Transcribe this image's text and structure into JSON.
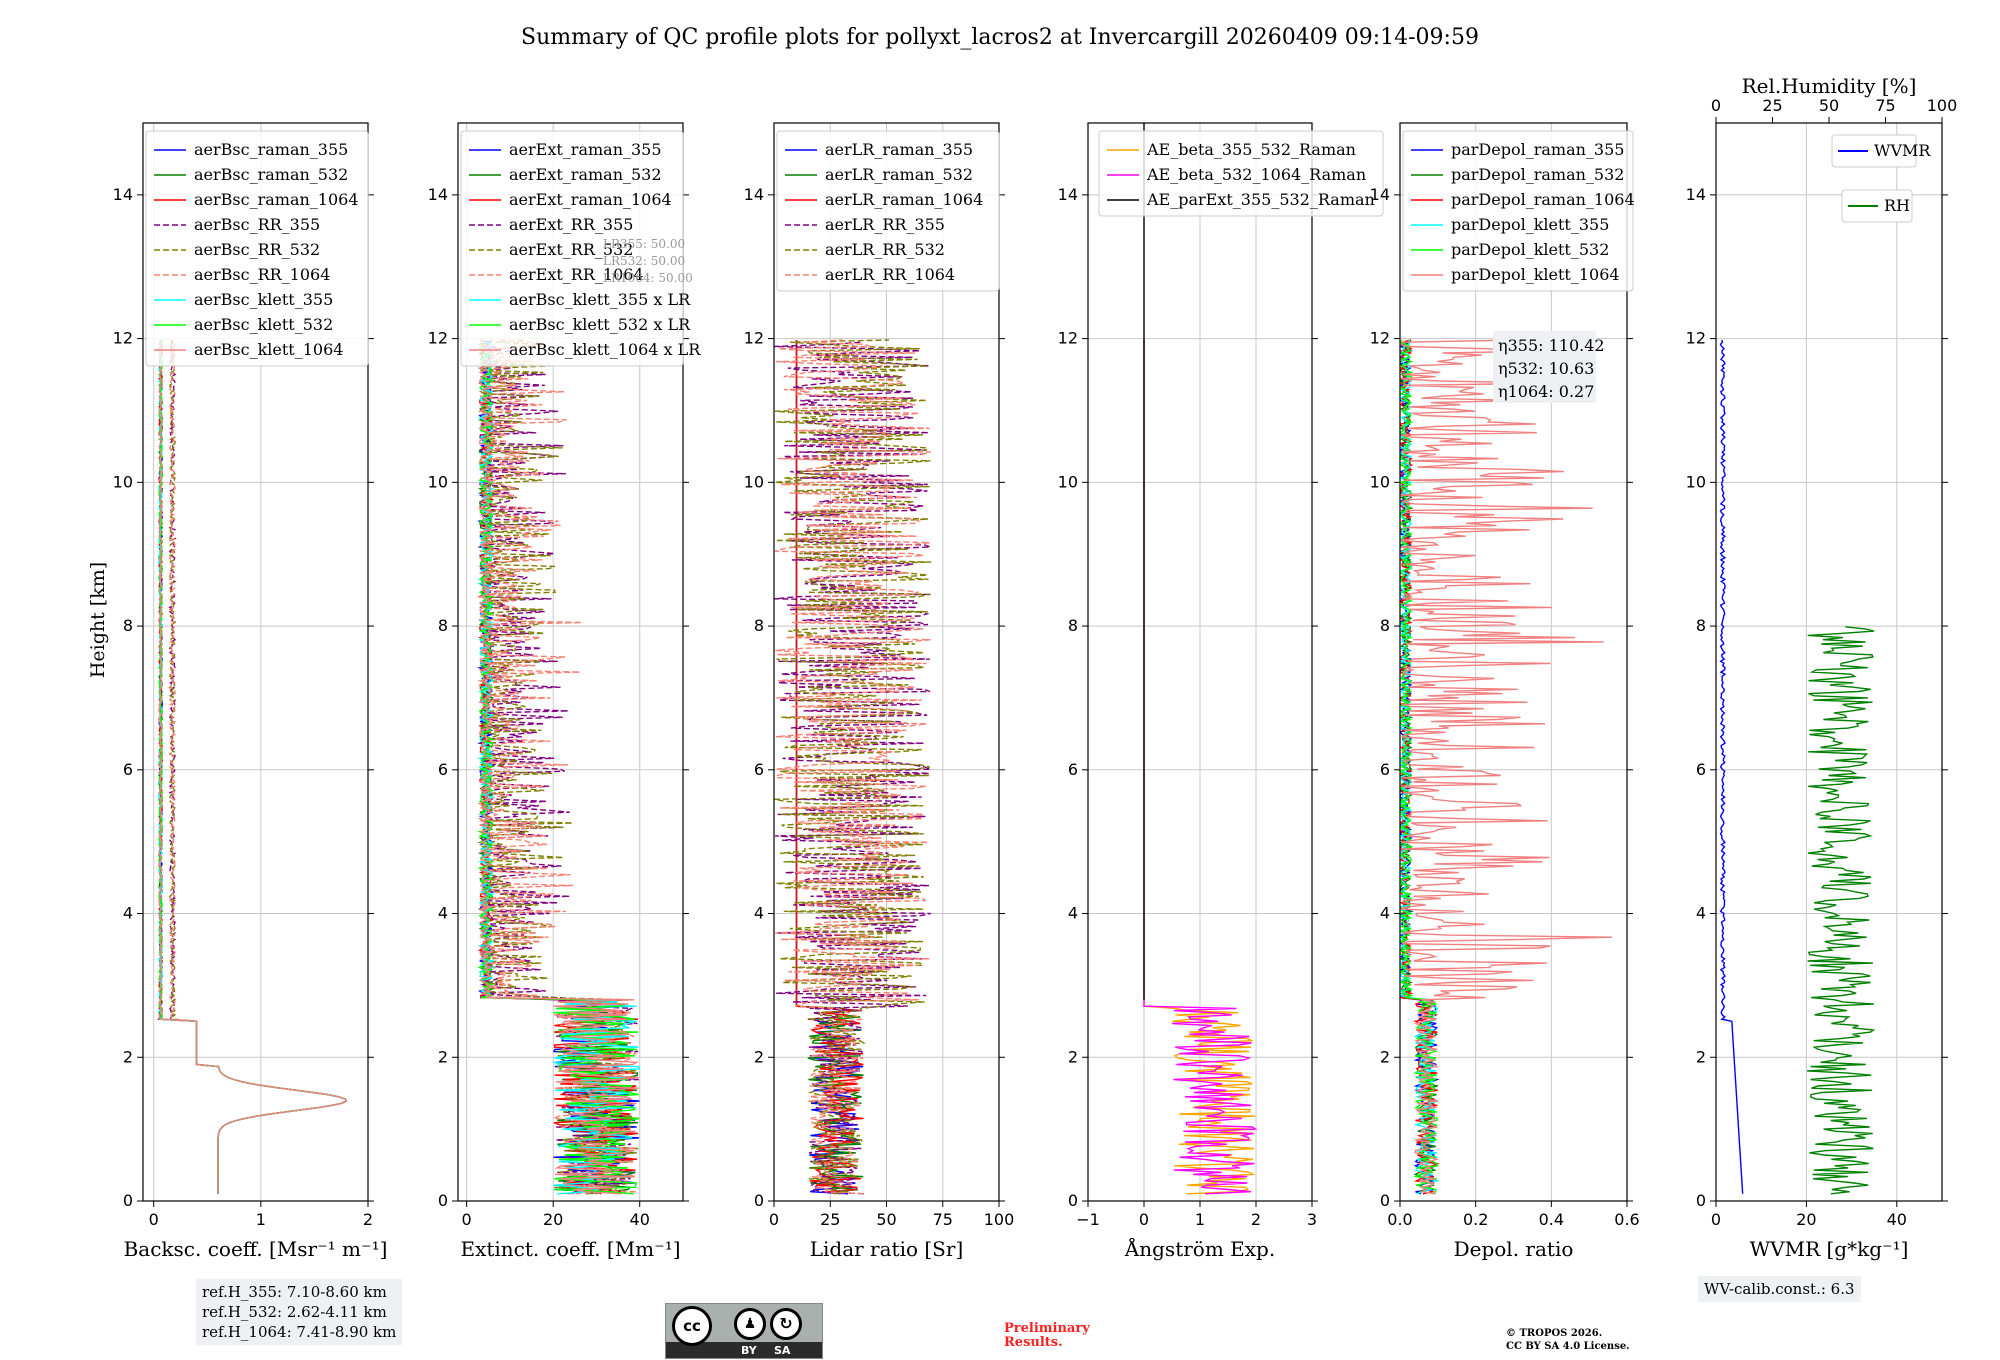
{
  "title": "Summary of QC profile plots for pollyxt_lacros2 at Invercargill 20260409 09:14-09:59",
  "y_axis": {
    "label": "Height [km]",
    "ticks": [
      "0",
      "2",
      "4",
      "6",
      "8",
      "10",
      "12",
      "14"
    ]
  },
  "chart_data": [
    {
      "type": "line",
      "name": "backscatter",
      "xlabel": "Backsc. coeff. [Msr⁻¹ m⁻¹]",
      "xlim": [
        -0.1,
        2
      ],
      "ylim": [
        0,
        15
      ],
      "xticks": [
        "0",
        "1",
        "2"
      ],
      "legend": [
        {
          "label": "aerBsc_raman_355",
          "color": "#0000ff",
          "dash": false
        },
        {
          "label": "aerBsc_raman_532",
          "color": "#008000",
          "dash": false
        },
        {
          "label": "aerBsc_raman_1064",
          "color": "#ff0000",
          "dash": false
        },
        {
          "label": "aerBsc_RR_355",
          "color": "#800080",
          "dash": true
        },
        {
          "label": "aerBsc_RR_532",
          "color": "#808000",
          "dash": true
        },
        {
          "label": "aerBsc_RR_1064",
          "color": "#fa8072",
          "dash": true
        },
        {
          "label": "aerBsc_klett_355",
          "color": "#00ffff",
          "dash": false
        },
        {
          "label": "aerBsc_klett_532",
          "color": "#00ff00",
          "dash": false
        },
        {
          "label": "aerBsc_klett_1064",
          "color": "#f08080",
          "dash": false
        }
      ]
    },
    {
      "type": "line",
      "name": "extinction",
      "xlabel": "Extinct. coeff. [Mm⁻¹]",
      "xlim": [
        -2,
        50
      ],
      "ylim": [
        0,
        15
      ],
      "xticks": [
        "0",
        "20",
        "40"
      ],
      "legend": [
        {
          "label": "aerExt_raman_355",
          "color": "#0000ff",
          "dash": false
        },
        {
          "label": "aerExt_raman_532",
          "color": "#008000",
          "dash": false
        },
        {
          "label": "aerExt_raman_1064",
          "color": "#ff0000",
          "dash": false
        },
        {
          "label": "aerExt_RR_355",
          "color": "#800080",
          "dash": true
        },
        {
          "label": "aerExt_RR_532",
          "color": "#808000",
          "dash": true
        },
        {
          "label": "aerExt_RR_1064",
          "color": "#fa8072",
          "dash": true
        },
        {
          "label": "aerBsc_klett_355 x LR",
          "color": "#00ffff",
          "dash": false
        },
        {
          "label": "aerBsc_klett_532 x LR",
          "color": "#00ff00",
          "dash": false
        },
        {
          "label": "aerBsc_klett_1064 x LR",
          "color": "#f08080",
          "dash": false
        }
      ],
      "lr_annotation": [
        "LR355: 50.00",
        "LR532: 50.00",
        "LR1064: 50.00"
      ]
    },
    {
      "type": "line",
      "name": "lidar_ratio",
      "xlabel": "Lidar ratio [Sr]",
      "xlim": [
        0,
        100
      ],
      "ylim": [
        0,
        15
      ],
      "xticks": [
        "0",
        "25",
        "50",
        "75",
        "100"
      ],
      "legend": [
        {
          "label": "aerLR_raman_355",
          "color": "#0000ff",
          "dash": false
        },
        {
          "label": "aerLR_raman_532",
          "color": "#008000",
          "dash": false
        },
        {
          "label": "aerLR_raman_1064",
          "color": "#ff0000",
          "dash": false
        },
        {
          "label": "aerLR_RR_355",
          "color": "#800080",
          "dash": true
        },
        {
          "label": "aerLR_RR_532",
          "color": "#808000",
          "dash": true
        },
        {
          "label": "aerLR_RR_1064",
          "color": "#fa8072",
          "dash": true
        }
      ]
    },
    {
      "type": "line",
      "name": "angstrom",
      "xlabel": "Ångström Exp.",
      "xlim": [
        -1,
        3
      ],
      "ylim": [
        0,
        15
      ],
      "xticks": [
        "−1",
        "0",
        "1",
        "2",
        "3"
      ],
      "legend": [
        {
          "label": "AE_beta_355_532_Raman",
          "color": "#ffa500",
          "dash": false
        },
        {
          "label": "AE_beta_532_1064_Raman",
          "color": "#ff00ff",
          "dash": false
        },
        {
          "label": "AE_parExt_355_532_Raman",
          "color": "#000000",
          "dash": false
        }
      ]
    },
    {
      "type": "line",
      "name": "depol",
      "xlabel": "Depol. ratio",
      "xlim": [
        0,
        0.6
      ],
      "ylim": [
        0,
        15
      ],
      "xticks": [
        "0.0",
        "0.2",
        "0.4",
        "0.6"
      ],
      "legend": [
        {
          "label": "parDepol_raman_355",
          "color": "#0000ff",
          "dash": false
        },
        {
          "label": "parDepol_raman_532",
          "color": "#008000",
          "dash": false
        },
        {
          "label": "parDepol_raman_1064",
          "color": "#ff0000",
          "dash": false
        },
        {
          "label": "parDepol_klett_355",
          "color": "#00ffff",
          "dash": false
        },
        {
          "label": "parDepol_klett_532",
          "color": "#00ff00",
          "dash": false
        },
        {
          "label": "parDepol_klett_1064",
          "color": "#f08080",
          "dash": false
        }
      ],
      "eta": [
        "η355: 110.42",
        "η532: 10.63",
        "η1064: 0.27"
      ]
    },
    {
      "type": "line",
      "name": "water_vapor",
      "xlabel": "WVMR [g*kg⁻¹]",
      "top_xlabel": "Rel.Humidity [%]",
      "xlim": [
        0,
        50
      ],
      "top_xlim": [
        0,
        100
      ],
      "ylim": [
        0,
        15
      ],
      "xticks": [
        "0",
        "20",
        "40"
      ],
      "top_xticks": [
        "0",
        "25",
        "50",
        "75",
        "100"
      ],
      "legend": [
        {
          "label": "WVMR",
          "color": "#0000ff",
          "dash": false
        },
        {
          "label": "RH",
          "color": "#008000",
          "dash": false
        }
      ]
    }
  ],
  "ref_heights": [
    "ref.H_355: 7.10-8.60 km",
    "ref.H_532: 2.62-4.11 km",
    "ref.H_1064: 7.41-8.90 km"
  ],
  "wv_calib": "WV-calib.const.: 6.3",
  "license": {
    "cc": "cc",
    "by": "BY",
    "sa": "SA"
  },
  "preliminary": [
    "Preliminary",
    "Results."
  ],
  "tropos": [
    "© TROPOS 2026.",
    "CC BY SA 4.0 License."
  ]
}
